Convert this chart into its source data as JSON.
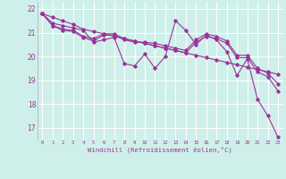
{
  "xlabel": "Windchill (Refroidissement éolien,°C)",
  "bg_color": "#cff0ea",
  "grid_color": "#ffffff",
  "line_color": "#993399",
  "xlim": [
    -0.5,
    23.5
  ],
  "ylim": [
    16.5,
    22.3
  ],
  "yticks": [
    17,
    18,
    19,
    20,
    21,
    22
  ],
  "xticks": [
    0,
    1,
    2,
    3,
    4,
    5,
    6,
    7,
    8,
    9,
    10,
    11,
    12,
    13,
    14,
    15,
    16,
    17,
    18,
    19,
    20,
    21,
    22,
    23
  ],
  "line1_y": [
    21.8,
    21.4,
    21.3,
    21.2,
    21.1,
    20.6,
    20.7,
    20.8,
    19.7,
    19.6,
    20.1,
    19.5,
    20.0,
    21.5,
    21.1,
    20.5,
    20.9,
    20.7,
    20.2,
    19.2,
    19.9,
    18.2,
    17.5,
    16.6
  ],
  "line2_y": [
    21.8,
    21.3,
    21.15,
    21.1,
    20.85,
    20.75,
    20.95,
    20.95,
    20.75,
    20.65,
    20.55,
    20.45,
    20.35,
    20.25,
    20.15,
    20.6,
    20.85,
    20.75,
    20.55,
    19.95,
    19.95,
    19.35,
    19.15,
    18.55
  ],
  "line3_y": [
    21.8,
    21.3,
    21.1,
    21.05,
    20.8,
    20.65,
    20.9,
    20.9,
    20.7,
    20.6,
    20.6,
    20.55,
    20.45,
    20.35,
    20.25,
    20.7,
    20.95,
    20.85,
    20.65,
    20.05,
    20.05,
    19.5,
    19.3,
    18.85
  ],
  "line4_y": [
    21.8,
    21.65,
    21.5,
    21.35,
    21.15,
    21.05,
    20.95,
    20.85,
    20.75,
    20.65,
    20.55,
    20.45,
    20.35,
    20.25,
    20.15,
    20.05,
    19.95,
    19.85,
    19.75,
    19.65,
    19.55,
    19.45,
    19.35,
    19.25
  ]
}
